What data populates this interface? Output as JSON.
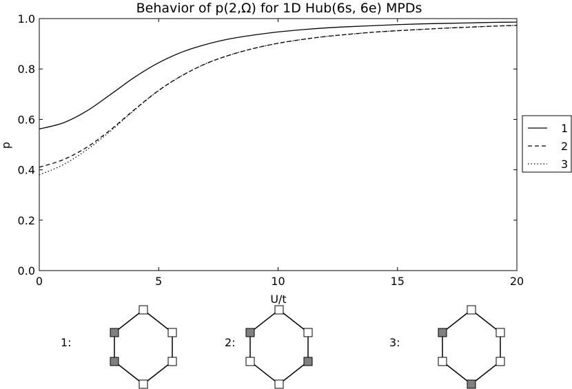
{
  "chart_data": {
    "type": "line",
    "title": "Behavior of p(2,Ω) for 1D Hub(6s, 6e) MPDs",
    "xlabel": "U/t",
    "ylabel": "p",
    "xlim": [
      0,
      20
    ],
    "ylim": [
      0,
      1
    ],
    "x_ticks": [
      0,
      5,
      10,
      15,
      20
    ],
    "x_tick_labels": [
      "0",
      "5",
      "10",
      "15",
      "20"
    ],
    "y_ticks": [
      0,
      0.2,
      0.4,
      0.6,
      0.8,
      1.0
    ],
    "y_tick_labels": [
      "0.0",
      "0.2",
      "0.4",
      "0.6",
      "0.8",
      "1.0"
    ],
    "grid": false,
    "legend_position": "right",
    "series": [
      {
        "name": "1",
        "style": "solid",
        "x": [
          0,
          1,
          2,
          3,
          4,
          5,
          6,
          7,
          8,
          9,
          10,
          11,
          12,
          13,
          14,
          15,
          16,
          17,
          18,
          19,
          20
        ],
        "y": [
          0.562,
          0.586,
          0.634,
          0.7,
          0.768,
          0.825,
          0.868,
          0.898,
          0.92,
          0.935,
          0.947,
          0.956,
          0.963,
          0.968,
          0.972,
          0.976,
          0.979,
          0.981,
          0.983,
          0.985,
          0.986
        ]
      },
      {
        "name": "2",
        "style": "dashed",
        "x": [
          0,
          1,
          2,
          3,
          4,
          5,
          6,
          7,
          8,
          9,
          10,
          11,
          12,
          13,
          14,
          15,
          16,
          17,
          18,
          19,
          20
        ],
        "y": [
          0.41,
          0.44,
          0.49,
          0.56,
          0.64,
          0.715,
          0.775,
          0.822,
          0.856,
          0.882,
          0.902,
          0.917,
          0.929,
          0.938,
          0.946,
          0.952,
          0.957,
          0.962,
          0.966,
          0.97,
          0.973
        ]
      },
      {
        "name": "3",
        "style": "dotted",
        "x": [
          0,
          1,
          2,
          3,
          4,
          5,
          6,
          7,
          8,
          9,
          10,
          11,
          12,
          13,
          14,
          15,
          16,
          17,
          18,
          19,
          20
        ],
        "y": [
          0.38,
          0.42,
          0.48,
          0.555,
          0.638,
          0.714,
          0.775,
          0.822,
          0.856,
          0.882,
          0.902,
          0.917,
          0.929,
          0.938,
          0.946,
          0.952,
          0.957,
          0.962,
          0.966,
          0.97,
          0.973
        ]
      }
    ]
  },
  "configurations": [
    {
      "label": "1:",
      "filled_sites": [
        1,
        2
      ]
    },
    {
      "label": "2:",
      "filled_sites": [
        1,
        4
      ]
    },
    {
      "label": "3:",
      "filled_sites": [
        1,
        3
      ]
    }
  ],
  "colors": {
    "filled_site": "#808080",
    "empty_site": "#ffffff",
    "line": "#000000"
  }
}
